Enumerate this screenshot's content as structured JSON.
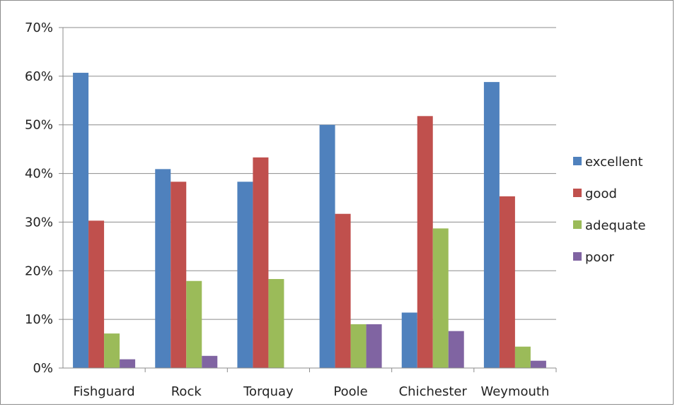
{
  "chart_data": {
    "type": "bar",
    "categories": [
      "Fishguard",
      "Rock",
      "Torquay",
      "Poole",
      "Chichester",
      "Weymouth"
    ],
    "series": [
      {
        "name": "excellent",
        "color": "#4f81bd",
        "values": [
          60.7,
          40.9,
          38.3,
          50.0,
          11.4,
          58.8
        ]
      },
      {
        "name": "good",
        "color": "#c0504d",
        "values": [
          30.3,
          38.3,
          43.3,
          31.7,
          51.8,
          35.3
        ]
      },
      {
        "name": "adequate",
        "color": "#9bbb59",
        "values": [
          7.1,
          17.9,
          18.3,
          9.0,
          28.7,
          4.4
        ]
      },
      {
        "name": "poor",
        "color": "#8064a2",
        "values": [
          1.8,
          2.5,
          0,
          9.0,
          7.6,
          1.5
        ]
      }
    ],
    "y_ticks": [
      "0%",
      "10%",
      "20%",
      "30%",
      "40%",
      "50%",
      "60%",
      "70%"
    ],
    "ylim": [
      0,
      70
    ],
    "grid": true,
    "legend_position": "right",
    "title": "",
    "xlabel": "",
    "ylabel": ""
  }
}
